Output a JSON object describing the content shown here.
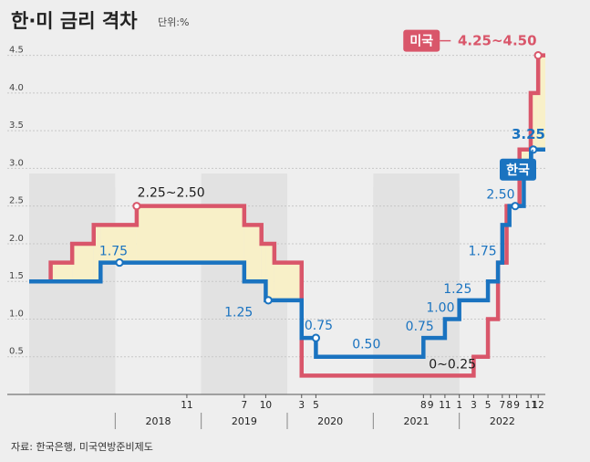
{
  "title": "한·미 금리 격차",
  "unit": "단위:%",
  "source": "자료: 한국은행, 미국연방준비제도",
  "colors": {
    "us": "#d9566a",
    "kr": "#1a73c0",
    "gap_fill": "#f8f0c8",
    "background": "#eeeeee",
    "year_band": "#e2e2e2"
  },
  "chart_data": {
    "type": "line",
    "step": true,
    "title": "한·미 금리 격차",
    "ylabel": "단위:%",
    "ylim": [
      0,
      4.75
    ],
    "yticks": [
      0.5,
      1.0,
      1.5,
      2.0,
      2.5,
      3.0,
      3.5,
      4.0,
      4.5
    ],
    "ytick_labels": [
      "0.5",
      "1.0",
      "1.5",
      "2.0",
      "2.5",
      "3.0",
      "3.5",
      "4.0",
      "4.5"
    ],
    "xlim": [
      2017.0,
      2023.0
    ],
    "xticks": [
      {
        "label": "11",
        "x": 2018.833
      },
      {
        "label": "7",
        "x": 2019.5
      },
      {
        "label": "10",
        "x": 2019.75
      },
      {
        "label": "3",
        "x": 2020.167
      },
      {
        "label": "5",
        "x": 2020.333
      },
      {
        "label": "8",
        "x": 2021.583
      },
      {
        "label": "9",
        "x": 2021.667
      },
      {
        "label": "11",
        "x": 2021.833
      },
      {
        "label": "1",
        "x": 2022.0
      },
      {
        "label": "3",
        "x": 2022.167
      },
      {
        "label": "5",
        "x": 2022.333
      },
      {
        "label": "7",
        "x": 2022.5
      },
      {
        "label": "8",
        "x": 2022.583
      },
      {
        "label": "9",
        "x": 2022.667
      },
      {
        "label": "11",
        "x": 2022.833
      },
      {
        "label": "12",
        "x": 2022.917
      }
    ],
    "years": [
      {
        "label": "2018",
        "x": 2018.5
      },
      {
        "label": "2019",
        "x": 2019.5
      },
      {
        "label": "2020",
        "x": 2020.5
      },
      {
        "label": "2021",
        "x": 2021.5
      },
      {
        "label": "2022",
        "x": 2022.5
      }
    ],
    "series": [
      {
        "name": "미국",
        "points": [
          [
            2017.0,
            1.5
          ],
          [
            2017.25,
            1.75
          ],
          [
            2017.5,
            2.0
          ],
          [
            2017.75,
            2.25
          ],
          [
            2018.25,
            2.5
          ],
          [
            2019.5,
            2.25
          ],
          [
            2019.7,
            2.0
          ],
          [
            2019.85,
            1.75
          ],
          [
            2020.167,
            0.25
          ],
          [
            2022.167,
            0.5
          ],
          [
            2022.333,
            1.0
          ],
          [
            2022.45,
            1.75
          ],
          [
            2022.55,
            2.5
          ],
          [
            2022.7,
            3.25
          ],
          [
            2022.83,
            4.0
          ],
          [
            2022.917,
            4.5
          ],
          [
            2023.0,
            4.5
          ]
        ]
      },
      {
        "name": "한국",
        "points": [
          [
            2017.0,
            1.5
          ],
          [
            2017.83,
            1.75
          ],
          [
            2019.5,
            1.5
          ],
          [
            2019.75,
            1.25
          ],
          [
            2020.167,
            0.75
          ],
          [
            2020.333,
            0.5
          ],
          [
            2021.583,
            0.75
          ],
          [
            2021.833,
            1.0
          ],
          [
            2022.0,
            1.25
          ],
          [
            2022.333,
            1.5
          ],
          [
            2022.45,
            1.75
          ],
          [
            2022.5,
            2.25
          ],
          [
            2022.583,
            2.5
          ],
          [
            2022.75,
            3.0
          ],
          [
            2022.833,
            3.25
          ],
          [
            2023.0,
            3.25
          ]
        ]
      }
    ],
    "annotations": [
      {
        "text": "2.25~2.50",
        "series": "미국",
        "x": 2018.65,
        "y": 2.5,
        "dy": -10,
        "anchor": "middle",
        "cls": "lbl",
        "marker_x": 2018.25
      },
      {
        "text": "1.75",
        "series": "한국",
        "x": 2017.98,
        "y": 1.75,
        "dy": -8,
        "anchor": "middle",
        "cls": "lbl-kr",
        "marker_x": 2018.05
      },
      {
        "text": "1.25",
        "series": "한국",
        "x": 2019.6,
        "y": 1.25,
        "dy": 8,
        "anchor": "end",
        "cls": "lbl-kr",
        "marker_x": 2019.78
      },
      {
        "text": "0.75",
        "series": "한국",
        "x": 2020.2,
        "y": 0.75,
        "dy": -9,
        "anchor": "start",
        "cls": "lbl-kr",
        "marker_x": 2020.333
      },
      {
        "text": "0.50",
        "series": "한국",
        "x": 2020.92,
        "y": 0.5,
        "dy": -9,
        "anchor": "middle",
        "cls": "lbl-kr",
        "marker_x": null
      },
      {
        "text": "0.75",
        "series": "한국",
        "x": 2021.54,
        "y": 0.75,
        "dy": -8,
        "anchor": "middle",
        "cls": "lbl-kr",
        "marker_x": null
      },
      {
        "text": "1.00",
        "series": "한국",
        "x": 2021.78,
        "y": 1.0,
        "dy": -8,
        "anchor": "middle",
        "cls": "lbl-kr",
        "marker_x": null
      },
      {
        "text": "1.25",
        "series": "한국",
        "x": 2021.98,
        "y": 1.25,
        "dy": -8,
        "anchor": "middle",
        "cls": "lbl-kr",
        "marker_x": null
      },
      {
        "text": "1.75",
        "series": "한국",
        "x": 2022.27,
        "y": 1.75,
        "dy": -8,
        "anchor": "middle",
        "cls": "lbl-kr",
        "marker_x": null
      },
      {
        "text": "2.50",
        "series": "한국",
        "x": 2022.48,
        "y": 2.5,
        "dy": -8,
        "anchor": "middle",
        "cls": "lbl-kr",
        "marker_x": 2022.65
      },
      {
        "text": "0~0.25",
        "series": "미국",
        "x": 2021.92,
        "y": 0.25,
        "dy": -8,
        "anchor": "middle",
        "cls": "lbl",
        "marker_x": null
      },
      {
        "text": "4.25~4.50",
        "series": "미국",
        "x": 2022.9,
        "y": 4.5,
        "dy": -11,
        "anchor": "end",
        "cls": "big-us",
        "marker_x": 2022.917
      },
      {
        "text": "3.25",
        "series": "한국",
        "x": 2023.0,
        "y": 3.25,
        "dy": -12,
        "anchor": "end",
        "cls": "big-kr",
        "marker_x": 2022.86
      }
    ],
    "badges": [
      {
        "text": "미국",
        "series": "미국"
      },
      {
        "text": "한국",
        "series": "한국"
      }
    ]
  }
}
